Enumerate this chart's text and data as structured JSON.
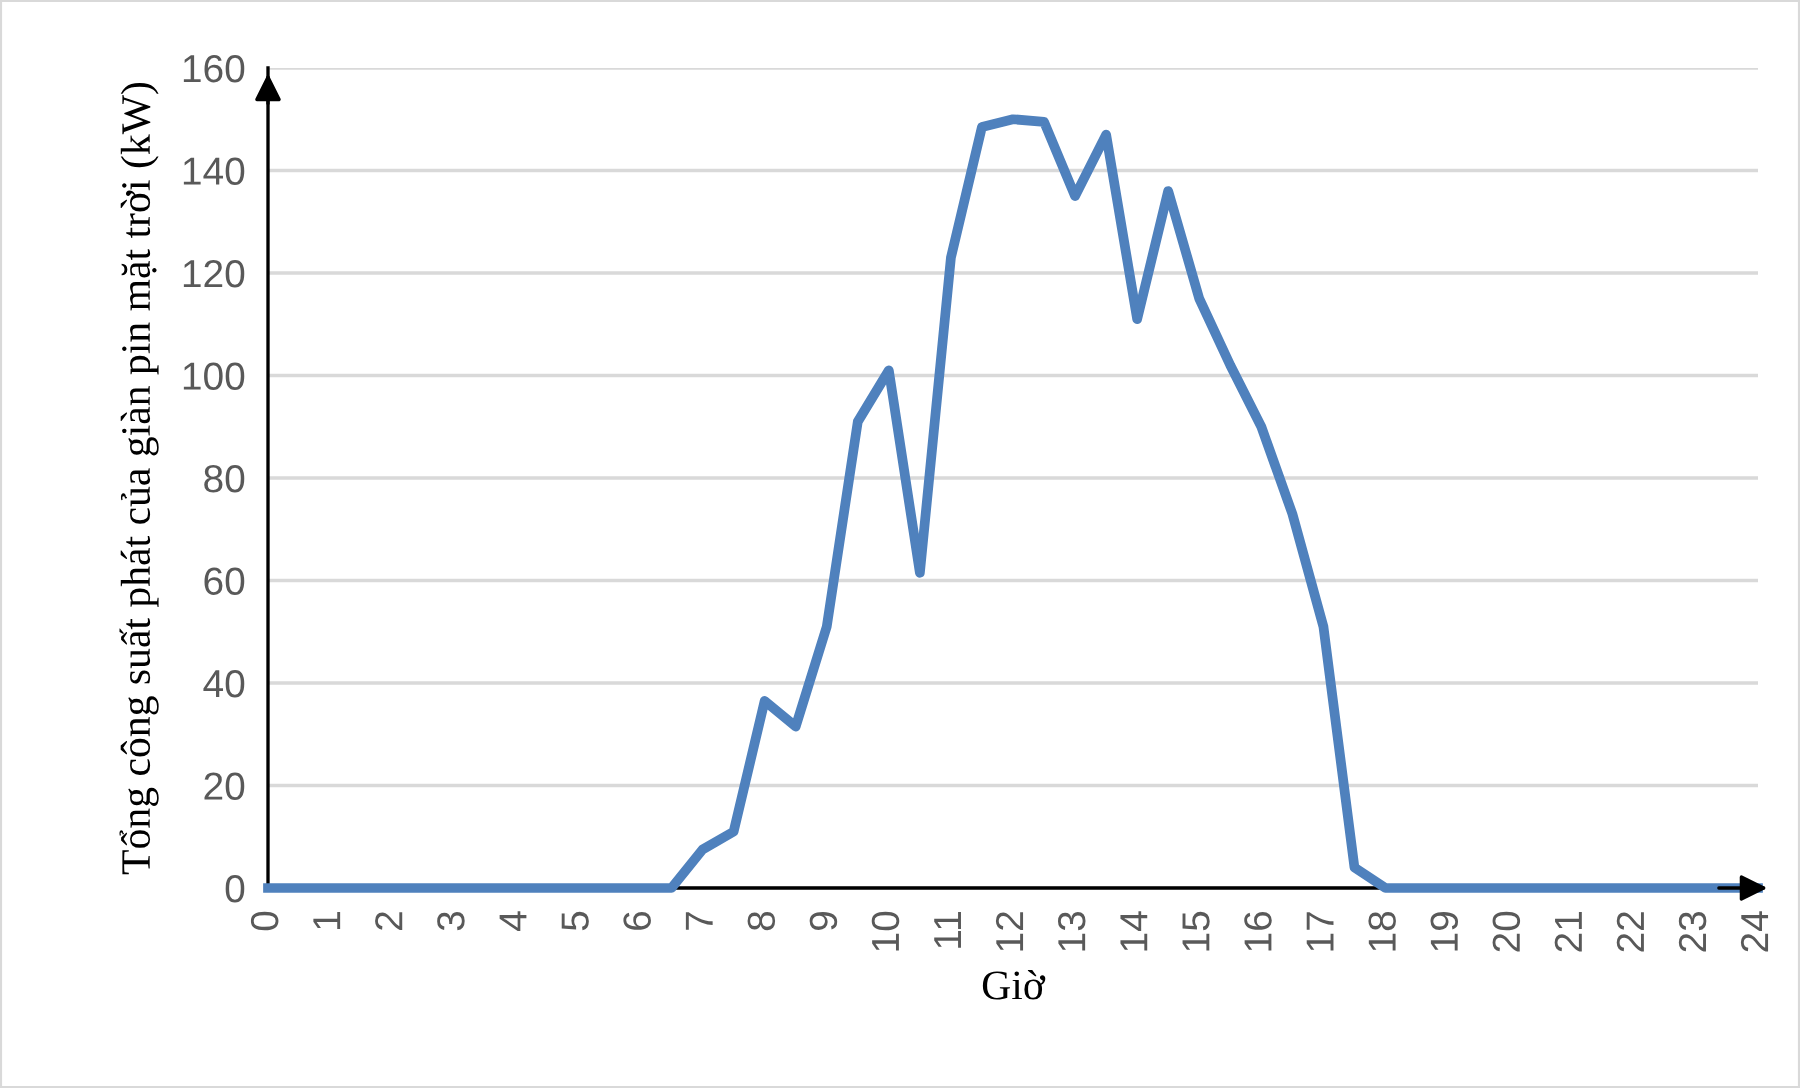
{
  "chart_data": {
    "type": "line",
    "xlabel": "Giờ",
    "ylabel": "Tổng công suất phát của giàn pin mặt trời (kW)",
    "x": [
      0,
      0.5,
      1,
      1.5,
      2,
      2.5,
      3,
      3.5,
      4,
      4.5,
      5,
      5.5,
      6,
      6.5,
      7,
      7.5,
      8,
      8.5,
      9,
      9.5,
      10,
      10.5,
      11,
      11.5,
      12,
      12.5,
      13,
      13.5,
      14,
      14.5,
      15,
      15.5,
      16,
      16.5,
      17,
      17.5,
      18,
      18.5,
      19,
      19.5,
      20,
      20.5,
      21,
      21.5,
      22,
      22.5,
      23,
      23.5,
      24
    ],
    "series": [
      {
        "color": "#4f81bd",
        "values": [
          0,
          0,
          0,
          0,
          0,
          0,
          0,
          0,
          0,
          0,
          0,
          0,
          0,
          0,
          7.5,
          11,
          36.5,
          31.5,
          51,
          91,
          101,
          61.5,
          123,
          148.5,
          150,
          149.5,
          135,
          147,
          111,
          136,
          115,
          102,
          90,
          73,
          51,
          4,
          0,
          0,
          0,
          0,
          0,
          0,
          0,
          0,
          0,
          0,
          0,
          0,
          0
        ]
      }
    ],
    "xlim": [
      0,
      24
    ],
    "xticks": [
      0,
      1,
      2,
      3,
      4,
      5,
      6,
      7,
      8,
      9,
      10,
      11,
      12,
      13,
      14,
      15,
      16,
      17,
      18,
      19,
      20,
      21,
      22,
      23,
      24
    ],
    "ylim": [
      0,
      160
    ],
    "yticks": [
      0,
      20,
      40,
      60,
      80,
      100,
      120,
      140,
      160
    ],
    "grid": "y",
    "marker": "none",
    "line_style": "solid"
  }
}
